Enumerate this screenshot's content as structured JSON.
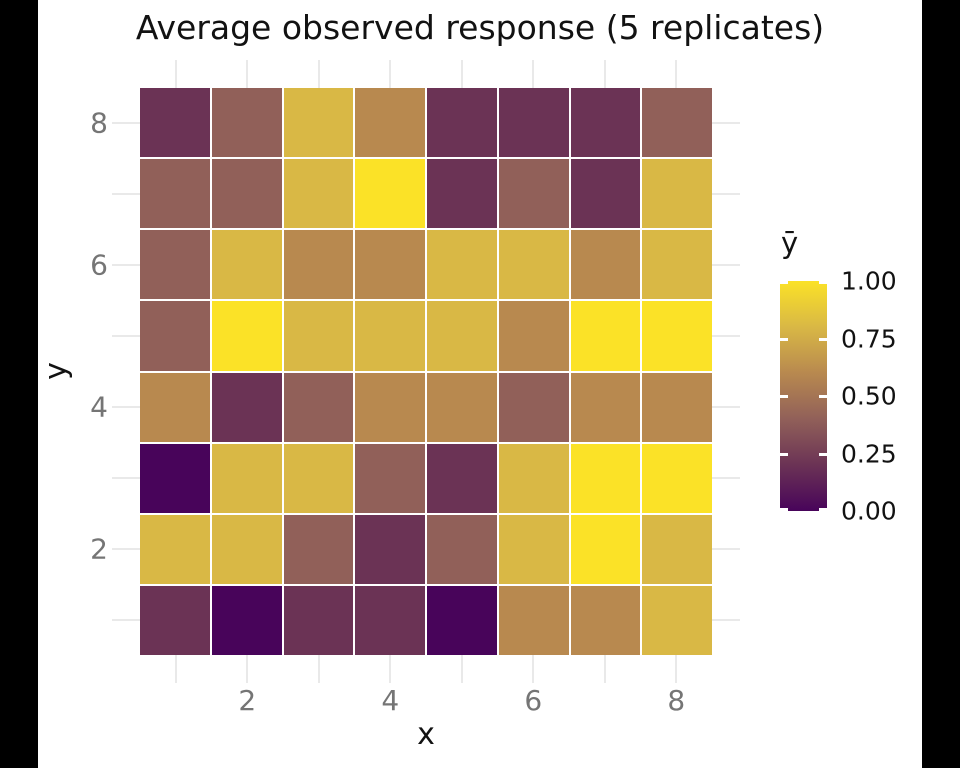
{
  "title": "Average observed response (5 replicates)",
  "axes": {
    "x": {
      "label": "x",
      "tick_values": [
        2,
        4,
        6,
        8
      ],
      "tick_labels": [
        "2",
        "4",
        "6",
        "8"
      ],
      "range": [
        1,
        8
      ]
    },
    "y": {
      "label": "y",
      "tick_values": [
        2,
        4,
        6,
        8
      ],
      "tick_labels": [
        "2",
        "4",
        "6",
        "8"
      ],
      "range": [
        1,
        8
      ]
    }
  },
  "legend": {
    "title": "ȳ",
    "tick_values": [
      1.0,
      0.75,
      0.5,
      0.25,
      0.0
    ],
    "tick_labels": [
      "1.00",
      "0.75",
      "0.50",
      "0.25",
      "0.00"
    ],
    "gradient_stops": [
      {
        "value": 0.0,
        "color": "#48045A"
      },
      {
        "value": 0.2,
        "color": "#6B3355"
      },
      {
        "value": 0.4,
        "color": "#916059"
      },
      {
        "value": 0.6,
        "color": "#B8894F"
      },
      {
        "value": 0.8,
        "color": "#D9B845"
      },
      {
        "value": 1.0,
        "color": "#FBE227"
      }
    ]
  },
  "colors": {
    "background": "#000000",
    "panel_background": "#ffffff",
    "gridline": "#e9e9e9",
    "tick_label": "#757575",
    "text": "#121212",
    "tile_border": "#ffffff"
  },
  "chart_data": {
    "type": "heatmap",
    "title": "Average observed response (5 replicates)",
    "xlabel": "x",
    "ylabel": "y",
    "x_values": [
      1,
      2,
      3,
      4,
      5,
      6,
      7,
      8
    ],
    "y_values": [
      1,
      2,
      3,
      4,
      5,
      6,
      7,
      8
    ],
    "value_range": [
      0.0,
      1.0
    ],
    "grid_rows_top_to_bottom_y8_to_y1": [
      {
        "y": 8,
        "values": [
          0.2,
          0.4,
          0.8,
          0.6,
          0.2,
          0.2,
          0.2,
          0.4
        ]
      },
      {
        "y": 7,
        "values": [
          0.4,
          0.4,
          0.8,
          1.0,
          0.2,
          0.4,
          0.2,
          0.8
        ]
      },
      {
        "y": 6,
        "values": [
          0.4,
          0.8,
          0.6,
          0.6,
          0.8,
          0.8,
          0.6,
          0.8
        ]
      },
      {
        "y": 5,
        "values": [
          0.4,
          1.0,
          0.8,
          0.8,
          0.8,
          0.6,
          1.0,
          1.0
        ]
      },
      {
        "y": 4,
        "values": [
          0.6,
          0.2,
          0.4,
          0.6,
          0.6,
          0.4,
          0.6,
          0.6
        ]
      },
      {
        "y": 3,
        "values": [
          0.0,
          0.8,
          0.8,
          0.4,
          0.2,
          0.8,
          1.0,
          1.0
        ]
      },
      {
        "y": 2,
        "values": [
          0.8,
          0.8,
          0.4,
          0.2,
          0.4,
          0.8,
          1.0,
          0.8
        ]
      },
      {
        "y": 1,
        "values": [
          0.2,
          0.0,
          0.2,
          0.2,
          0.0,
          0.6,
          0.6,
          0.8
        ]
      }
    ],
    "palette": {
      "0.0": "#48045A",
      "0.2": "#6B3355",
      "0.4": "#916059",
      "0.6": "#B8894F",
      "0.8": "#D9B845",
      "1.0": "#FBE227"
    },
    "legend_position": "right",
    "grid": "minimal-theme stubs at integer positions"
  }
}
